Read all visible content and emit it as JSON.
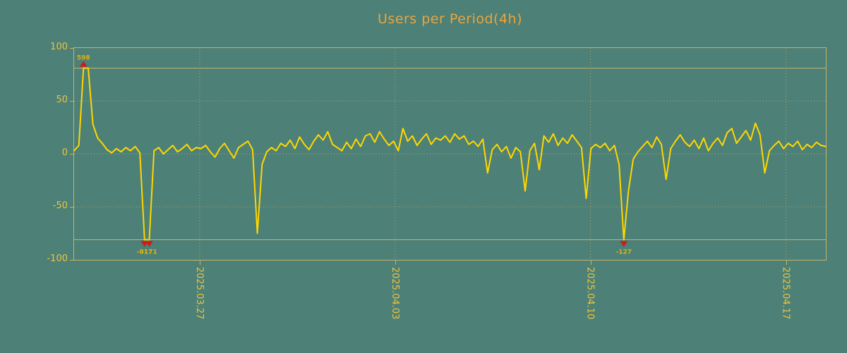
{
  "title": "Users per Period(4h)",
  "colors": {
    "background": "#4d8077",
    "line": "#ffd700",
    "title_text": "#eda43c",
    "axis_text": "#ecc53f",
    "grid": "#c6b26b",
    "marker": "#cf1b1b",
    "annotation_text": "#d8b410"
  },
  "chart_data": {
    "type": "line",
    "title": "Users per Period(4h)",
    "grid": true,
    "legend": false,
    "ylim": [
      -100,
      100
    ],
    "clip_lines": [
      81,
      -81
    ],
    "yticks": [
      {
        "label": "100",
        "value": 100
      },
      {
        "label": "50",
        "value": 50
      },
      {
        "label": "0",
        "value": 0
      },
      {
        "label": "-50",
        "value": -50
      },
      {
        "label": "-100",
        "value": -100
      }
    ],
    "xticks": [
      {
        "label": "2025.03.27",
        "pos": 0.167
      },
      {
        "label": "2025.04.03",
        "pos": 0.427
      },
      {
        "label": "2025.04.10",
        "pos": 0.687
      },
      {
        "label": "2025.04.17",
        "pos": 0.947
      }
    ],
    "values": [
      3,
      8,
      81,
      81,
      28,
      15,
      10,
      4,
      1,
      5,
      2,
      6,
      3,
      7,
      1,
      -81,
      -81,
      3,
      6,
      0,
      4,
      8,
      2,
      5,
      9,
      3,
      6,
      5,
      8,
      2,
      -3,
      5,
      10,
      3,
      -4,
      6,
      9,
      12,
      4,
      -75,
      -10,
      2,
      6,
      3,
      10,
      7,
      13,
      5,
      16,
      9,
      4,
      12,
      18,
      13,
      21,
      9,
      6,
      3,
      11,
      5,
      14,
      7,
      17,
      19,
      11,
      21,
      14,
      8,
      12,
      3,
      24,
      12,
      17,
      8,
      14,
      19,
      9,
      15,
      13,
      17,
      11,
      19,
      14,
      17,
      9,
      12,
      7,
      14,
      -18,
      4,
      9,
      2,
      7,
      -4,
      6,
      2,
      -35,
      3,
      10,
      -15,
      17,
      11,
      19,
      8,
      15,
      10,
      18,
      12,
      6,
      -42,
      5,
      9,
      6,
      10,
      3,
      8,
      -10,
      -81,
      -35,
      -5,
      2,
      7,
      12,
      6,
      16,
      9,
      -24,
      5,
      12,
      18,
      11,
      7,
      13,
      5,
      15,
      3,
      10,
      15,
      8,
      20,
      24,
      10,
      16,
      22,
      13,
      29,
      18,
      -18,
      3,
      8,
      12,
      5,
      10,
      7,
      12,
      4,
      9,
      6,
      11,
      8,
      7
    ],
    "annotations": [
      {
        "index": 2,
        "label": "598",
        "dir": "up"
      },
      {
        "index": 15,
        "label": "-817",
        "dir": "down"
      },
      {
        "index": 16,
        "label": "-171",
        "dir": "down"
      },
      {
        "index": 117,
        "label": "-127",
        "dir": "down"
      }
    ]
  }
}
